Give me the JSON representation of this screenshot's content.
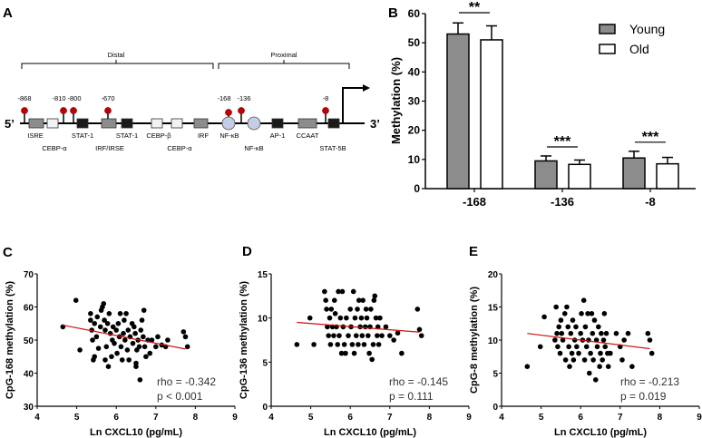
{
  "panel_letters": {
    "a": "A",
    "b": "B",
    "c": "C",
    "d": "D",
    "e": "E"
  },
  "promoter": {
    "five_prime": "5’",
    "three_prime": "3’",
    "regions": {
      "distal": "Distal",
      "proximal": "Proximal"
    },
    "cpg_sites": [
      "-868",
      "-810",
      "-800",
      "-670",
      "-168",
      "-136",
      "-8"
    ],
    "elements": [
      "ISRE",
      "CEBP-α",
      "STAT-1",
      "IRF/IRSE",
      "STAT-1",
      "CEBP-β",
      "CEBP-α",
      "IRF",
      "NF-κB",
      "NF-κB",
      "AP-1",
      "CCAAT",
      "STAT-5B"
    ],
    "colors": {
      "cpg": "#c00000",
      "gray_box": "#8c8c8c",
      "white_box": "#f2f2f2",
      "black_box": "#1a1a1a",
      "circle": "#c5cde6"
    }
  },
  "chart_data": [
    {
      "type": "bar",
      "panel": "B",
      "ylabel": "Methylation (%)",
      "xlabel": "",
      "ylim": [
        0,
        60
      ],
      "yticks": [
        "0",
        "10",
        "20",
        "30",
        "40",
        "50",
        "60"
      ],
      "categories": [
        "-168",
        "-136",
        "-8"
      ],
      "series": [
        {
          "name": "Young",
          "color": "#8c8c8c",
          "values": [
            53,
            9.5,
            10.5
          ],
          "error": [
            3.8,
            1.7,
            2.3
          ]
        },
        {
          "name": "Old",
          "color": "#ffffff",
          "values": [
            51,
            8.3,
            8.5
          ],
          "error": [
            4.8,
            1.5,
            2.2
          ]
        }
      ],
      "significance": [
        "**",
        "***",
        "***"
      ],
      "legend": "top-right"
    },
    {
      "type": "scatter",
      "panel": "C",
      "xlabel": "Ln CXCL10 (pg/mL)",
      "ylabel": "CpG-168 methylation (%)",
      "xlim": [
        4,
        9
      ],
      "ylim": [
        30,
        70
      ],
      "xticks": [
        "4",
        "5",
        "6",
        "7",
        "8",
        "9"
      ],
      "yticks": [
        "30",
        "40",
        "50",
        "60",
        "70"
      ],
      "rho": "rho = -0.342",
      "p": "p < 0.001",
      "fit": [
        [
          4.65,
          54.5
        ],
        [
          7.75,
          47.3
        ]
      ],
      "points": [
        [
          4.65,
          54
        ],
        [
          4.98,
          62
        ],
        [
          5.08,
          47
        ],
        [
          5.35,
          58
        ],
        [
          5.35,
          56
        ],
        [
          5.38,
          53
        ],
        [
          5.4,
          50
        ],
        [
          5.42,
          44
        ],
        [
          5.45,
          45
        ],
        [
          5.45,
          55
        ],
        [
          5.5,
          51
        ],
        [
          5.52,
          57
        ],
        [
          5.55,
          47.5
        ],
        [
          5.6,
          54
        ],
        [
          5.62,
          59
        ],
        [
          5.65,
          60
        ],
        [
          5.68,
          61
        ],
        [
          5.7,
          56
        ],
        [
          5.72,
          53
        ],
        [
          5.72,
          44
        ],
        [
          5.75,
          48
        ],
        [
          5.78,
          55
        ],
        [
          5.8,
          42
        ],
        [
          5.82,
          58
        ],
        [
          5.85,
          52
        ],
        [
          5.88,
          45
        ],
        [
          5.9,
          50
        ],
        [
          5.92,
          54
        ],
        [
          5.95,
          49
        ],
        [
          6.0,
          53
        ],
        [
          6.02,
          46
        ],
        [
          6.05,
          55
        ],
        [
          6.08,
          51
        ],
        [
          6.1,
          58
        ],
        [
          6.12,
          48
        ],
        [
          6.15,
          44
        ],
        [
          6.18,
          52
        ],
        [
          6.2,
          56
        ],
        [
          6.22,
          50
        ],
        [
          6.25,
          58
        ],
        [
          6.28,
          47
        ],
        [
          6.3,
          53
        ],
        [
          6.32,
          44
        ],
        [
          6.35,
          51
        ],
        [
          6.4,
          55
        ],
        [
          6.42,
          49
        ],
        [
          6.45,
          54
        ],
        [
          6.48,
          52
        ],
        [
          6.5,
          42
        ],
        [
          6.5,
          43
        ],
        [
          6.52,
          47
        ],
        [
          6.55,
          50
        ],
        [
          6.58,
          48
        ],
        [
          6.6,
          38
        ],
        [
          6.62,
          53
        ],
        [
          6.65,
          56
        ],
        [
          6.68,
          51
        ],
        [
          6.7,
          59
        ],
        [
          6.72,
          48
        ],
        [
          6.75,
          45
        ],
        [
          6.8,
          50
        ],
        [
          6.85,
          46
        ],
        [
          6.9,
          50
        ],
        [
          7.0,
          48
        ],
        [
          7.05,
          51
        ],
        [
          7.15,
          48.5
        ],
        [
          7.25,
          48
        ],
        [
          7.3,
          50
        ],
        [
          7.7,
          52.5
        ],
        [
          7.75,
          51
        ],
        [
          7.8,
          48
        ]
      ]
    },
    {
      "type": "scatter",
      "panel": "D",
      "xlabel": "Ln CXCL10 (pg/mL)",
      "ylabel": "CpG-136 methylation (%)",
      "xlim": [
        4,
        9
      ],
      "ylim": [
        0,
        15
      ],
      "xticks": [
        "4",
        "5",
        "6",
        "7",
        "8",
        "9"
      ],
      "yticks": [
        "0",
        "5",
        "10",
        "15"
      ],
      "rho": "rho = -0.145",
      "p": "p = 0.111",
      "fit": [
        [
          4.65,
          9.5
        ],
        [
          7.75,
          8.4
        ]
      ],
      "points": [
        [
          4.65,
          7
        ],
        [
          4.98,
          10
        ],
        [
          5.08,
          7
        ],
        [
          5.35,
          13
        ],
        [
          5.38,
          12
        ],
        [
          5.4,
          11
        ],
        [
          5.42,
          9
        ],
        [
          5.45,
          8
        ],
        [
          5.48,
          10
        ],
        [
          5.5,
          7
        ],
        [
          5.52,
          11
        ],
        [
          5.55,
          9
        ],
        [
          5.58,
          8
        ],
        [
          5.6,
          12
        ],
        [
          5.62,
          10.5
        ],
        [
          5.65,
          9
        ],
        [
          5.68,
          7
        ],
        [
          5.7,
          13
        ],
        [
          5.72,
          8
        ],
        [
          5.75,
          10
        ],
        [
          5.78,
          6
        ],
        [
          5.8,
          13
        ],
        [
          5.82,
          9
        ],
        [
          5.85,
          7
        ],
        [
          5.88,
          6
        ],
        [
          5.9,
          10
        ],
        [
          5.95,
          8
        ],
        [
          6.0,
          11
        ],
        [
          6.02,
          9
        ],
        [
          6.05,
          7
        ],
        [
          6.08,
          13
        ],
        [
          6.1,
          6
        ],
        [
          6.12,
          10
        ],
        [
          6.15,
          8
        ],
        [
          6.18,
          11
        ],
        [
          6.2,
          7
        ],
        [
          6.22,
          12
        ],
        [
          6.25,
          9
        ],
        [
          6.28,
          10
        ],
        [
          6.3,
          8
        ],
        [
          6.32,
          12
        ],
        [
          6.35,
          7
        ],
        [
          6.38,
          9
        ],
        [
          6.4,
          11
        ],
        [
          6.42,
          10
        ],
        [
          6.45,
          8
        ],
        [
          6.48,
          6
        ],
        [
          6.5,
          9
        ],
        [
          6.52,
          11
        ],
        [
          6.55,
          5.3
        ],
        [
          6.58,
          7
        ],
        [
          6.6,
          12
        ],
        [
          6.62,
          12.5
        ],
        [
          6.65,
          10
        ],
        [
          6.68,
          8
        ],
        [
          6.7,
          9
        ],
        [
          6.72,
          7
        ],
        [
          6.75,
          10
        ],
        [
          6.8,
          8
        ],
        [
          6.9,
          9
        ],
        [
          7.0,
          8
        ],
        [
          7.1,
          7.5
        ],
        [
          7.2,
          8.3
        ],
        [
          7.3,
          6
        ],
        [
          7.7,
          11
        ],
        [
          7.75,
          8.7
        ],
        [
          7.8,
          8
        ]
      ]
    },
    {
      "type": "scatter",
      "panel": "E",
      "xlabel": "Ln CXCL10 (pg/mL)",
      "ylabel": "CpG-8 methylation (%)",
      "xlim": [
        4,
        9
      ],
      "ylim": [
        0,
        20
      ],
      "xticks": [
        "4",
        "5",
        "6",
        "7",
        "8",
        "9"
      ],
      "yticks": [
        "0",
        "5",
        "10",
        "15",
        "20"
      ],
      "rho": "rho = -0.213",
      "p": "p = 0.019",
      "fit": [
        [
          4.65,
          11
        ],
        [
          7.75,
          8.7
        ]
      ],
      "points": [
        [
          4.65,
          6
        ],
        [
          4.98,
          9
        ],
        [
          5.08,
          13.5
        ],
        [
          5.35,
          10
        ],
        [
          5.38,
          15
        ],
        [
          5.4,
          11
        ],
        [
          5.42,
          9
        ],
        [
          5.45,
          12
        ],
        [
          5.48,
          8
        ],
        [
          5.5,
          13
        ],
        [
          5.52,
          11
        ],
        [
          5.55,
          10
        ],
        [
          5.6,
          14
        ],
        [
          5.62,
          7
        ],
        [
          5.65,
          15
        ],
        [
          5.68,
          12
        ],
        [
          5.7,
          9
        ],
        [
          5.72,
          6
        ],
        [
          5.75,
          11
        ],
        [
          5.78,
          8
        ],
        [
          5.8,
          13
        ],
        [
          5.82,
          7
        ],
        [
          5.85,
          10
        ],
        [
          5.88,
          12
        ],
        [
          5.9,
          9
        ],
        [
          5.95,
          8
        ],
        [
          6.0,
          11
        ],
        [
          6.02,
          14
        ],
        [
          6.05,
          10
        ],
        [
          6.08,
          16
        ],
        [
          6.1,
          7
        ],
        [
          6.12,
          12
        ],
        [
          6.15,
          9
        ],
        [
          6.18,
          14
        ],
        [
          6.2,
          10
        ],
        [
          6.22,
          5
        ],
        [
          6.25,
          8
        ],
        [
          6.28,
          14
        ],
        [
          6.3,
          11
        ],
        [
          6.32,
          7
        ],
        [
          6.35,
          13
        ],
        [
          6.38,
          4
        ],
        [
          6.4,
          10
        ],
        [
          6.42,
          9
        ],
        [
          6.45,
          12
        ],
        [
          6.48,
          6
        ],
        [
          6.5,
          8
        ],
        [
          6.52,
          11
        ],
        [
          6.55,
          7
        ],
        [
          6.58,
          10
        ],
        [
          6.6,
          14
        ],
        [
          6.62,
          9
        ],
        [
          6.65,
          11
        ],
        [
          6.68,
          8
        ],
        [
          6.7,
          6
        ],
        [
          6.75,
          8
        ],
        [
          6.9,
          11
        ],
        [
          7.0,
          9
        ],
        [
          7.05,
          7
        ],
        [
          7.1,
          10
        ],
        [
          7.2,
          11
        ],
        [
          7.3,
          6
        ],
        [
          7.7,
          11
        ],
        [
          7.75,
          10
        ],
        [
          7.8,
          8
        ]
      ]
    }
  ]
}
